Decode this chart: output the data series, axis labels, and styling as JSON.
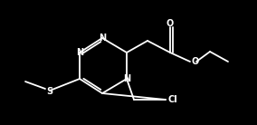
{
  "bg_color": "#000000",
  "line_color": "#ffffff",
  "line_width": 1.3,
  "font_size": 7.0,
  "figsize": [
    2.84,
    1.38
  ],
  "dpi": 100,
  "xlim": [
    0,
    284
  ],
  "ylim": [
    0,
    138
  ]
}
